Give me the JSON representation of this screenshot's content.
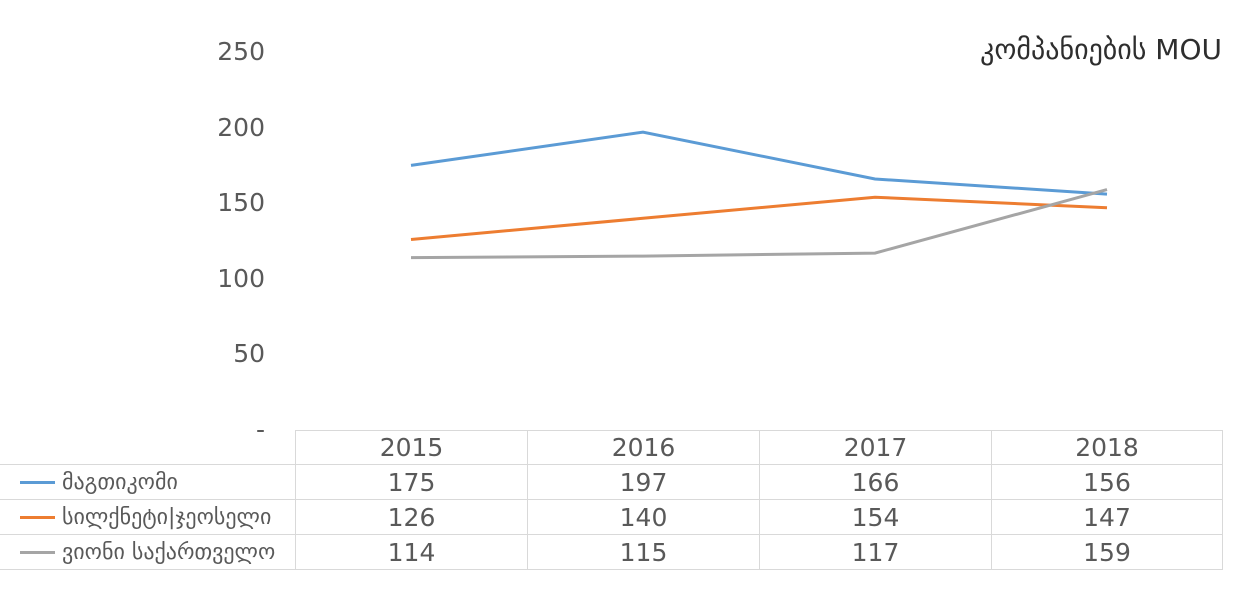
{
  "title": "კომპანიების MOU",
  "colors": {
    "series_blue": "#5B9BD5",
    "series_orange": "#ED7D31",
    "series_gray": "#A5A5A5",
    "text": "#595959",
    "title_text": "#2e2e2e",
    "border": "#D9D9D9",
    "background": "#FFFFFF"
  },
  "chart_data": {
    "type": "line",
    "title": "კომპანიების MOU",
    "categories": [
      "2015",
      "2016",
      "2017",
      "2018"
    ],
    "series": [
      {
        "name": "მაგთიკომი",
        "color": "#5B9BD5",
        "values": [
          175,
          197,
          166,
          156
        ]
      },
      {
        "name": "სილქნეტი|ჯეოსელი",
        "color": "#ED7D31",
        "values": [
          126,
          140,
          154,
          147
        ]
      },
      {
        "name": "ვიონი საქართველო",
        "color": "#A5A5A5",
        "values": [
          114,
          115,
          117,
          159
        ]
      }
    ],
    "y_axis": {
      "tick_labels": [
        "250",
        "200",
        "150",
        "100",
        "50",
        "-"
      ],
      "tick_values": [
        250,
        200,
        150,
        100,
        50,
        0
      ],
      "min": 0,
      "max": 250
    },
    "xlabel": "",
    "ylabel": "",
    "grid": false,
    "legend_position": "left-of-data-table",
    "data_table_shown": true
  }
}
